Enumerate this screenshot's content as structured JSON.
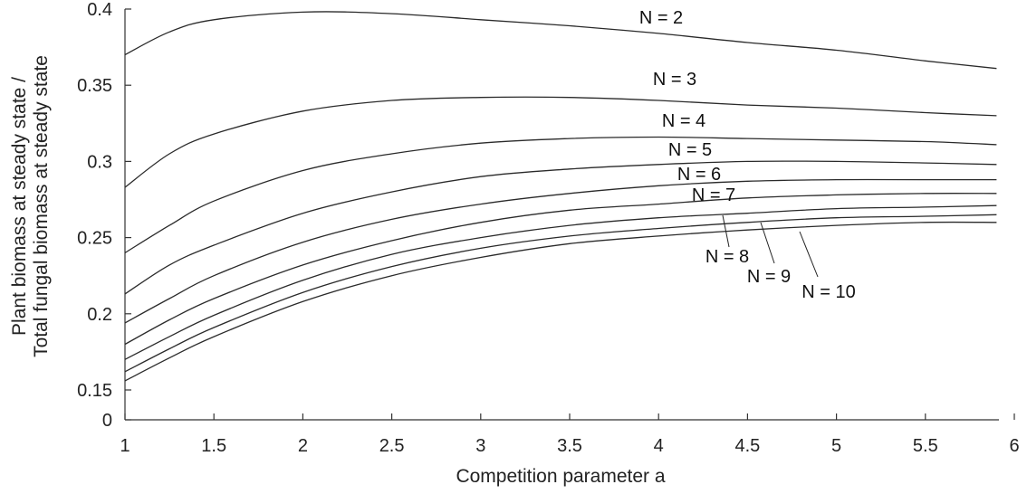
{
  "chart_data": {
    "type": "line",
    "title": "",
    "xlabel": "Competition parameter a",
    "ylabel_lines": [
      "Plant biomass at steady state /",
      "Total fungal biomass at steady state"
    ],
    "xlim": [
      1,
      6
    ],
    "ylim": [
      0.13,
      0.4
    ],
    "axis_break": "y-axis jumps from 0 to 0.15",
    "x_ticks": [
      1,
      1.5,
      2,
      2.5,
      3,
      3.5,
      4,
      4.5,
      5,
      5.5,
      6
    ],
    "x_tick_labels": [
      "1",
      "1.5",
      "2",
      "2.5",
      "3",
      "3.5",
      "4",
      "4.5",
      "5",
      "5.5",
      "6"
    ],
    "y_ticks": [
      0.15,
      0.2,
      0.25,
      0.3,
      0.35,
      0.4
    ],
    "y_tick_labels": [
      "0",
      "0.15",
      "0.2",
      "0.25",
      "0.3",
      "0.35",
      "0.4"
    ],
    "grid": false,
    "legend": "inline labels",
    "line_color": "#2a2a2a",
    "x": [
      1,
      1.25,
      1.5,
      2,
      2.5,
      3,
      3.5,
      4,
      4.5,
      5,
      5.5,
      5.9
    ],
    "series": [
      {
        "name": "N = 2",
        "values": [
          0.37,
          0.385,
          0.393,
          0.398,
          0.397,
          0.393,
          0.389,
          0.384,
          0.378,
          0.373,
          0.366,
          0.361
        ]
      },
      {
        "name": "N = 3",
        "values": [
          0.283,
          0.305,
          0.318,
          0.333,
          0.34,
          0.342,
          0.342,
          0.34,
          0.337,
          0.335,
          0.332,
          0.33
        ]
      },
      {
        "name": "N = 4",
        "values": [
          0.24,
          0.258,
          0.274,
          0.294,
          0.305,
          0.312,
          0.315,
          0.316,
          0.315,
          0.314,
          0.313,
          0.311
        ]
      },
      {
        "name": "N = 5",
        "values": [
          0.213,
          0.232,
          0.245,
          0.266,
          0.28,
          0.29,
          0.295,
          0.298,
          0.3,
          0.3,
          0.299,
          0.298
        ]
      },
      {
        "name": "N = 6",
        "values": [
          0.194,
          0.21,
          0.225,
          0.247,
          0.262,
          0.272,
          0.279,
          0.284,
          0.287,
          0.288,
          0.288,
          0.288
        ]
      },
      {
        "name": "N = 7",
        "values": [
          0.18,
          0.196,
          0.21,
          0.232,
          0.248,
          0.26,
          0.268,
          0.272,
          0.276,
          0.278,
          0.279,
          0.279
        ]
      },
      {
        "name": "N = 8",
        "values": [
          0.17,
          0.185,
          0.199,
          0.222,
          0.239,
          0.25,
          0.258,
          0.263,
          0.266,
          0.269,
          0.27,
          0.271
        ]
      },
      {
        "name": "N = 9",
        "values": [
          0.162,
          0.177,
          0.191,
          0.214,
          0.231,
          0.243,
          0.251,
          0.256,
          0.26,
          0.263,
          0.264,
          0.265
        ]
      },
      {
        "name": "N = 10",
        "values": [
          0.156,
          0.171,
          0.185,
          0.208,
          0.225,
          0.237,
          0.246,
          0.251,
          0.255,
          0.258,
          0.26,
          0.26
        ]
      }
    ]
  }
}
